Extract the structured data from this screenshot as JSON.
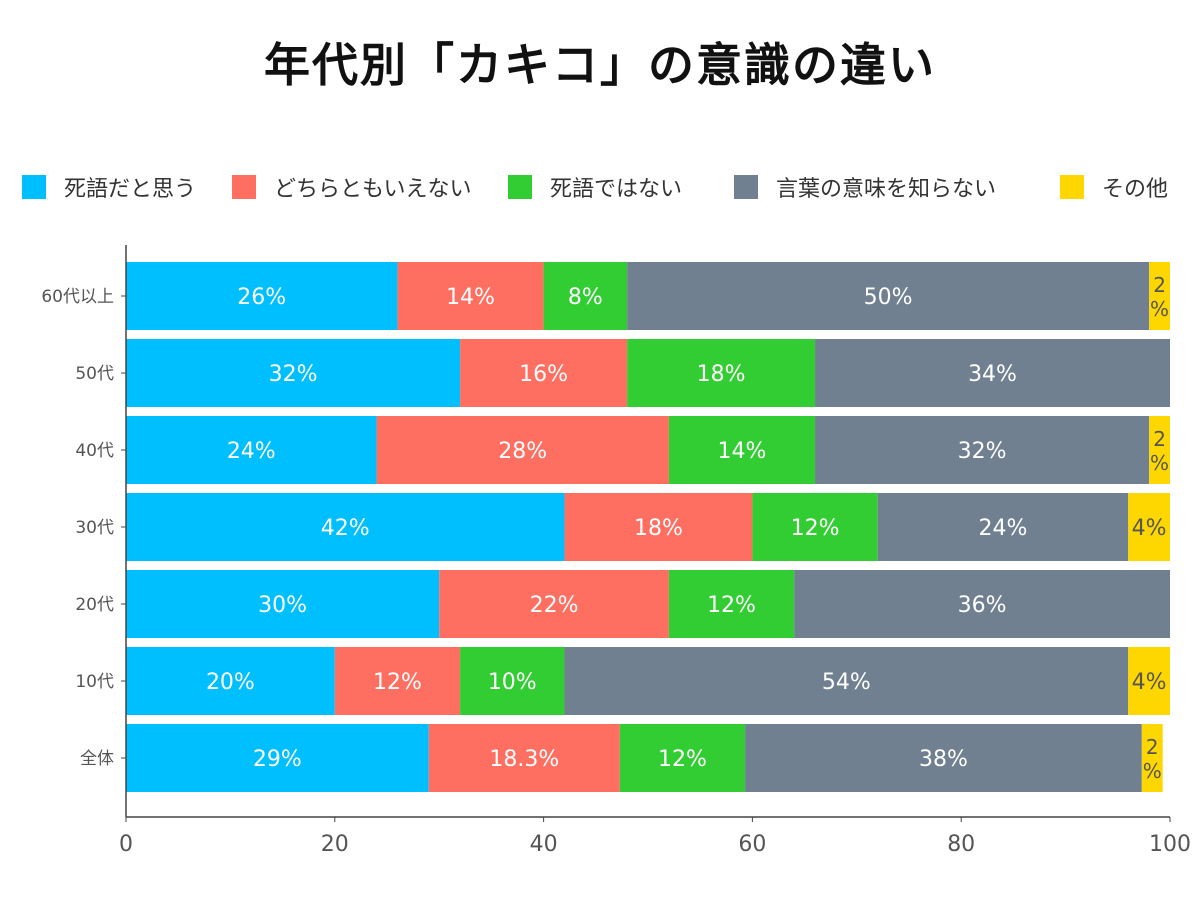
{
  "chart_data": {
    "type": "bar",
    "orientation": "horizontal",
    "stacked": true,
    "title": "年代別「カキコ」の意識の違い",
    "categories": [
      "60代以上",
      "50代",
      "40代",
      "30代",
      "20代",
      "10代",
      "全体"
    ],
    "series": [
      {
        "name": "死語だと思う",
        "color": "#00BFFF",
        "values": [
          26,
          32,
          24,
          42,
          30,
          20,
          29
        ],
        "labels": [
          "26%",
          "32%",
          "24%",
          "42%",
          "30%",
          "20%",
          "29%"
        ]
      },
      {
        "name": "どちらともいえない",
        "color": "#FF6F61",
        "values": [
          14,
          16,
          28,
          18,
          22,
          12,
          18.3
        ],
        "labels": [
          "14%",
          "16%",
          "28%",
          "18%",
          "22%",
          "12%",
          "18.3%"
        ]
      },
      {
        "name": "死語ではない",
        "color": "#32CD32",
        "values": [
          8,
          18,
          14,
          12,
          12,
          10,
          12
        ],
        "labels": [
          "8%",
          "18%",
          "14%",
          "12%",
          "12%",
          "10%",
          "12%"
        ]
      },
      {
        "name": "言葉の意味を知らない",
        "color": "#708090",
        "values": [
          50,
          34,
          32,
          24,
          36,
          54,
          38
        ],
        "labels": [
          "50%",
          "34%",
          "32%",
          "24%",
          "36%",
          "54%",
          "38%"
        ]
      },
      {
        "name": "その他",
        "color": "#FFD700",
        "values": [
          2,
          0,
          2,
          4,
          0,
          4,
          2
        ],
        "labels": [
          "2%",
          "",
          "2%",
          "4%",
          "",
          "4%",
          "2%"
        ]
      }
    ],
    "xlim": [
      0,
      100
    ],
    "xticks": [
      0,
      20,
      40,
      60,
      80,
      100
    ],
    "xlabel": "",
    "ylabel": "",
    "legend_position": "top",
    "grid": false
  }
}
